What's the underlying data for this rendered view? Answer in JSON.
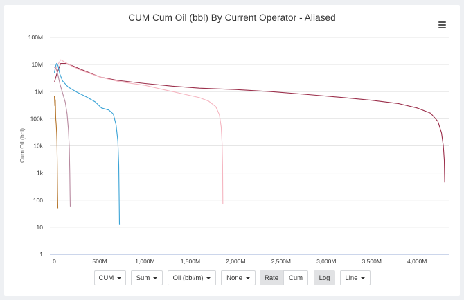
{
  "chart_data": {
    "type": "line",
    "title": "CUM Cum Oil (bbl) By Current Operator - Aliased",
    "ylabel": "Cum Oil (bbl)",
    "xlabel": "",
    "y_scale": "log",
    "ylim": [
      1,
      100000000
    ],
    "xlim": [
      -50,
      4350
    ],
    "grid": "horizontal",
    "y_ticks": [
      {
        "value": 1,
        "label": "1"
      },
      {
        "value": 10,
        "label": "10"
      },
      {
        "value": 100,
        "label": "100"
      },
      {
        "value": 1000,
        "label": "1k"
      },
      {
        "value": 10000,
        "label": "10k"
      },
      {
        "value": 100000,
        "label": "100k"
      },
      {
        "value": 1000000,
        "label": "1M"
      },
      {
        "value": 10000000,
        "label": "10M"
      },
      {
        "value": 100000000,
        "label": "100M"
      }
    ],
    "x_ticks": [
      {
        "value": 0,
        "label": "0"
      },
      {
        "value": 500,
        "label": "500M"
      },
      {
        "value": 1000,
        "label": "1,000M"
      },
      {
        "value": 1500,
        "label": "1,500M"
      },
      {
        "value": 2000,
        "label": "2,000M"
      },
      {
        "value": 2500,
        "label": "2,500M"
      },
      {
        "value": 3000,
        "label": "3,000M"
      },
      {
        "value": 3500,
        "label": "3,500M"
      },
      {
        "value": 4000,
        "label": "4,000M"
      }
    ],
    "series": [
      {
        "color": "#9b2f4b",
        "points": [
          [
            0,
            2200000
          ],
          [
            30,
            5000000
          ],
          [
            70,
            11000000
          ],
          [
            120,
            11000000
          ],
          [
            200,
            9000000
          ],
          [
            300,
            6500000
          ],
          [
            500,
            3500000
          ],
          [
            700,
            2600000
          ],
          [
            1000,
            2000000
          ],
          [
            1300,
            1600000
          ],
          [
            1600,
            1350000
          ],
          [
            2000,
            1200000
          ],
          [
            2400,
            1000000
          ],
          [
            2800,
            780000
          ],
          [
            3200,
            600000
          ],
          [
            3500,
            480000
          ],
          [
            3800,
            360000
          ],
          [
            4000,
            250000
          ],
          [
            4150,
            160000
          ],
          [
            4230,
            80000
          ],
          [
            4270,
            30000
          ],
          [
            4290,
            10000
          ],
          [
            4300,
            3000
          ],
          [
            4305,
            450
          ]
        ]
      },
      {
        "color": "#f5b5c0",
        "points": [
          [
            0,
            5500000
          ],
          [
            30,
            9000000
          ],
          [
            70,
            15000000
          ],
          [
            120,
            12000000
          ],
          [
            200,
            8500000
          ],
          [
            300,
            6000000
          ],
          [
            500,
            3500000
          ],
          [
            700,
            2400000
          ],
          [
            900,
            1900000
          ],
          [
            1000,
            1700000
          ],
          [
            1200,
            1200000
          ],
          [
            1400,
            850000
          ],
          [
            1600,
            600000
          ],
          [
            1700,
            450000
          ],
          [
            1780,
            280000
          ],
          [
            1820,
            140000
          ],
          [
            1840,
            50000
          ],
          [
            1850,
            12000
          ],
          [
            1855,
            2000
          ],
          [
            1858,
            70
          ]
        ]
      },
      {
        "color": "#3aa3d6",
        "points": [
          [
            0,
            5000000
          ],
          [
            15,
            9000000
          ],
          [
            25,
            11000000
          ],
          [
            40,
            9000000
          ],
          [
            60,
            4500000
          ],
          [
            90,
            2500000
          ],
          [
            150,
            1500000
          ],
          [
            250,
            950000
          ],
          [
            350,
            650000
          ],
          [
            450,
            420000
          ],
          [
            520,
            250000
          ],
          [
            600,
            210000
          ],
          [
            650,
            150000
          ],
          [
            680,
            60000
          ],
          [
            700,
            15000
          ],
          [
            710,
            2000
          ],
          [
            715,
            100
          ],
          [
            718,
            12
          ]
        ]
      },
      {
        "color": "#b88aa0",
        "points": [
          [
            0,
            8000000
          ],
          [
            20,
            7000000
          ],
          [
            40,
            4000000
          ],
          [
            60,
            2000000
          ],
          [
            90,
            900000
          ],
          [
            120,
            400000
          ],
          [
            140,
            150000
          ],
          [
            155,
            40000
          ],
          [
            165,
            8000
          ],
          [
            170,
            1000
          ],
          [
            173,
            150
          ],
          [
            175,
            55
          ]
        ]
      },
      {
        "color": "#b5762c",
        "points": [
          [
            0,
            700000
          ],
          [
            5,
            300000
          ],
          [
            10,
            500000
          ],
          [
            15,
            100000
          ],
          [
            20,
            60000
          ],
          [
            25,
            30000
          ],
          [
            28,
            15000
          ],
          [
            32,
            2000
          ],
          [
            35,
            200
          ],
          [
            38,
            50
          ]
        ]
      }
    ]
  },
  "controls": {
    "type_label": "CUM",
    "agg_label": "Sum",
    "unit_label": "Oil (bbl/m)",
    "group_label": "None",
    "rate_label": "Rate",
    "cum_label": "Cum",
    "log_label": "Log",
    "style_label": "Line"
  }
}
